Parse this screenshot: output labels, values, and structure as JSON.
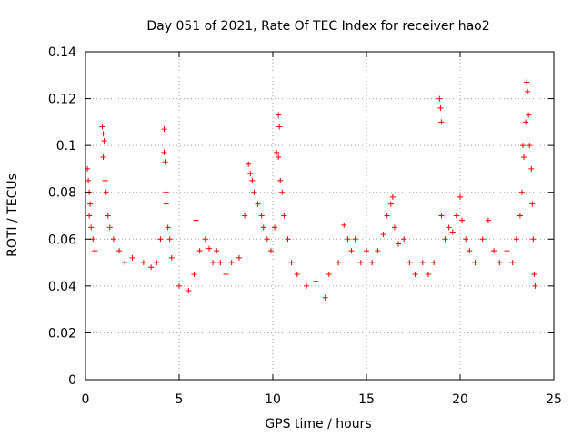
{
  "chart_data": {
    "type": "scatter",
    "title": "Day 051 of 2021, Rate Of TEC Index for receiver hao2",
    "xlabel": "GPS time / hours",
    "ylabel": "ROTI / TECUs",
    "xlim": [
      0,
      25
    ],
    "ylim": [
      0,
      0.14
    ],
    "xticks": [
      0,
      5,
      10,
      15,
      20,
      25
    ],
    "xtick_labels": [
      "0",
      "5",
      "10",
      "15",
      "20",
      "25"
    ],
    "yticks": [
      0,
      0.02,
      0.04,
      0.06,
      0.08,
      0.1,
      0.12,
      0.14
    ],
    "ytick_labels": [
      "0",
      "0.02",
      "0.04",
      "0.06",
      "0.08",
      "0.1",
      "0.12",
      "0.14"
    ],
    "grid": true,
    "marker": "plus",
    "series": [
      {
        "color": "#ff0000",
        "points": [
          [
            0.1,
            0.09
          ],
          [
            0.15,
            0.085
          ],
          [
            0.2,
            0.08
          ],
          [
            0.25,
            0.075
          ],
          [
            0.2,
            0.07
          ],
          [
            0.3,
            0.065
          ],
          [
            0.4,
            0.06
          ],
          [
            0.5,
            0.055
          ],
          [
            0.9,
            0.108
          ],
          [
            0.95,
            0.105
          ],
          [
            1.0,
            0.102
          ],
          [
            0.95,
            0.095
          ],
          [
            1.05,
            0.085
          ],
          [
            1.1,
            0.08
          ],
          [
            1.2,
            0.07
          ],
          [
            1.3,
            0.065
          ],
          [
            1.5,
            0.06
          ],
          [
            1.8,
            0.055
          ],
          [
            2.1,
            0.05
          ],
          [
            2.5,
            0.052
          ],
          [
            3.1,
            0.05
          ],
          [
            3.5,
            0.048
          ],
          [
            3.8,
            0.05
          ],
          [
            4.0,
            0.06
          ],
          [
            4.2,
            0.107
          ],
          [
            4.2,
            0.097
          ],
          [
            4.25,
            0.093
          ],
          [
            4.3,
            0.08
          ],
          [
            4.3,
            0.075
          ],
          [
            4.4,
            0.065
          ],
          [
            4.5,
            0.06
          ],
          [
            4.6,
            0.052
          ],
          [
            5.0,
            0.04
          ],
          [
            5.5,
            0.038
          ],
          [
            5.8,
            0.045
          ],
          [
            5.9,
            0.068
          ],
          [
            6.1,
            0.055
          ],
          [
            6.4,
            0.06
          ],
          [
            6.6,
            0.056
          ],
          [
            6.8,
            0.05
          ],
          [
            7.0,
            0.055
          ],
          [
            7.2,
            0.05
          ],
          [
            7.5,
            0.045
          ],
          [
            7.8,
            0.05
          ],
          [
            8.2,
            0.052
          ],
          [
            8.5,
            0.07
          ],
          [
            8.7,
            0.092
          ],
          [
            8.8,
            0.088
          ],
          [
            8.9,
            0.085
          ],
          [
            9.0,
            0.08
          ],
          [
            9.2,
            0.075
          ],
          [
            9.4,
            0.07
          ],
          [
            9.5,
            0.065
          ],
          [
            9.7,
            0.06
          ],
          [
            9.9,
            0.055
          ],
          [
            10.1,
            0.065
          ],
          [
            10.2,
            0.097
          ],
          [
            10.3,
            0.095
          ],
          [
            10.3,
            0.113
          ],
          [
            10.35,
            0.108
          ],
          [
            10.4,
            0.085
          ],
          [
            10.5,
            0.08
          ],
          [
            10.6,
            0.07
          ],
          [
            10.8,
            0.06
          ],
          [
            11.0,
            0.05
          ],
          [
            11.3,
            0.045
          ],
          [
            11.8,
            0.04
          ],
          [
            12.3,
            0.042
          ],
          [
            12.8,
            0.035
          ],
          [
            13.0,
            0.045
          ],
          [
            13.5,
            0.05
          ],
          [
            13.8,
            0.066
          ],
          [
            14.0,
            0.06
          ],
          [
            14.2,
            0.055
          ],
          [
            14.4,
            0.06
          ],
          [
            14.7,
            0.05
          ],
          [
            15.0,
            0.055
          ],
          [
            15.3,
            0.05
          ],
          [
            15.6,
            0.055
          ],
          [
            15.9,
            0.062
          ],
          [
            16.1,
            0.07
          ],
          [
            16.3,
            0.075
          ],
          [
            16.4,
            0.078
          ],
          [
            16.5,
            0.065
          ],
          [
            16.7,
            0.058
          ],
          [
            17.0,
            0.06
          ],
          [
            17.3,
            0.05
          ],
          [
            17.6,
            0.045
          ],
          [
            18.0,
            0.05
          ],
          [
            18.3,
            0.045
          ],
          [
            18.6,
            0.05
          ],
          [
            18.9,
            0.12
          ],
          [
            18.95,
            0.116
          ],
          [
            19.0,
            0.11
          ],
          [
            19.0,
            0.07
          ],
          [
            19.2,
            0.06
          ],
          [
            19.4,
            0.065
          ],
          [
            19.6,
            0.063
          ],
          [
            19.8,
            0.07
          ],
          [
            20.0,
            0.078
          ],
          [
            20.1,
            0.068
          ],
          [
            20.3,
            0.06
          ],
          [
            20.5,
            0.055
          ],
          [
            20.8,
            0.05
          ],
          [
            21.2,
            0.06
          ],
          [
            21.5,
            0.068
          ],
          [
            21.8,
            0.055
          ],
          [
            22.1,
            0.05
          ],
          [
            22.5,
            0.055
          ],
          [
            22.8,
            0.05
          ],
          [
            23.0,
            0.06
          ],
          [
            23.2,
            0.07
          ],
          [
            23.3,
            0.08
          ],
          [
            23.35,
            0.1
          ],
          [
            23.4,
            0.095
          ],
          [
            23.5,
            0.11
          ],
          [
            23.55,
            0.127
          ],
          [
            23.6,
            0.123
          ],
          [
            23.65,
            0.113
          ],
          [
            23.7,
            0.1
          ],
          [
            23.8,
            0.09
          ],
          [
            23.85,
            0.075
          ],
          [
            23.9,
            0.06
          ],
          [
            23.95,
            0.045
          ],
          [
            24.0,
            0.04
          ]
        ]
      }
    ]
  }
}
